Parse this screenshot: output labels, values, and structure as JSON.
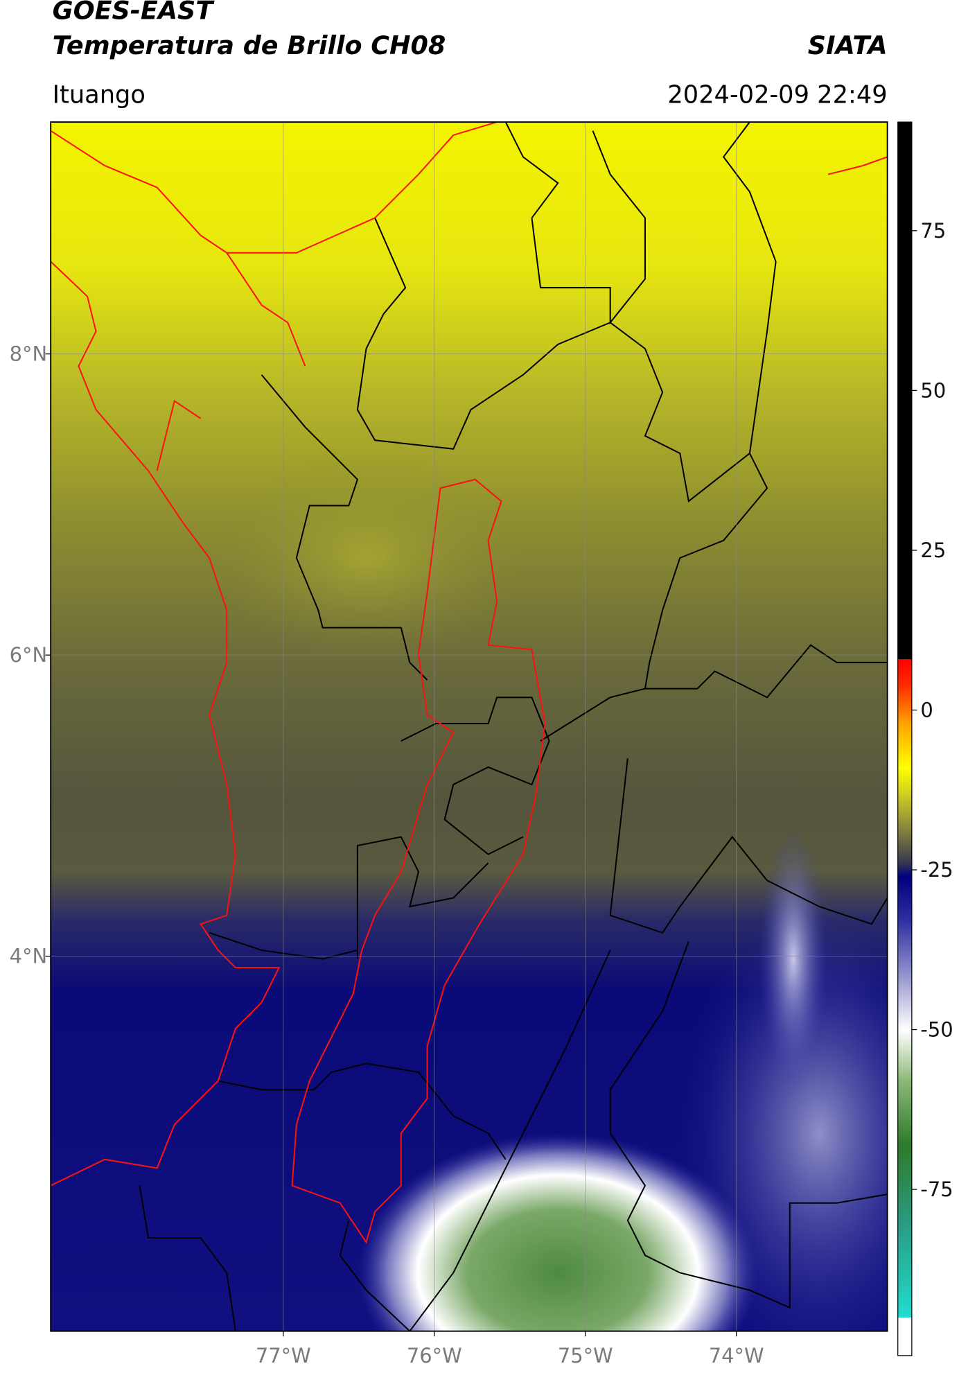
{
  "header": {
    "title": "GOES-EAST",
    "subtitle": "Temperatura de Brillo CH08",
    "source": "SIATA",
    "location": "Ituango",
    "datetime": "2024-02-09 22:49"
  },
  "map": {
    "xlim": [
      -78.54,
      -73.0
    ],
    "ylim": [
      1.51,
      9.54
    ],
    "xticks": [
      {
        "value": -77,
        "label": "77°W"
      },
      {
        "value": -76,
        "label": "76°W"
      },
      {
        "value": -75,
        "label": "75°W"
      },
      {
        "value": -74,
        "label": "74°W"
      }
    ],
    "yticks": [
      {
        "value": 8,
        "label": "8°N"
      },
      {
        "value": 6,
        "label": "6°N"
      },
      {
        "value": 4,
        "label": "4°N"
      }
    ],
    "grid": true
  },
  "colorbar": {
    "lim": [
      -101,
      92
    ],
    "ticks": [
      75,
      50,
      25,
      0,
      -25,
      -50,
      -75
    ],
    "stops": [
      {
        "value": -101,
        "color": "#ffffff"
      },
      {
        "value": -95,
        "color": "#ffffff"
      },
      {
        "value": -95,
        "color": "#20dcd0"
      },
      {
        "value": -80,
        "color": "#2a9a80"
      },
      {
        "value": -68,
        "color": "#2f7a2a"
      },
      {
        "value": -58,
        "color": "#8cb878"
      },
      {
        "value": -50,
        "color": "#ffffff"
      },
      {
        "value": -42,
        "color": "#9a9ad0"
      },
      {
        "value": -33,
        "color": "#3030a0"
      },
      {
        "value": -26,
        "color": "#000080"
      },
      {
        "value": -24,
        "color": "#353550"
      },
      {
        "value": -19,
        "color": "#808040"
      },
      {
        "value": -13,
        "color": "#d0d020"
      },
      {
        "value": -9,
        "color": "#ffff00"
      },
      {
        "value": -2,
        "color": "#ffa000"
      },
      {
        "value": 4,
        "color": "#ff2a00"
      },
      {
        "value": 8,
        "color": "#ff0000"
      },
      {
        "value": 8,
        "color": "#000000"
      },
      {
        "value": 92,
        "color": "#000000"
      }
    ]
  }
}
